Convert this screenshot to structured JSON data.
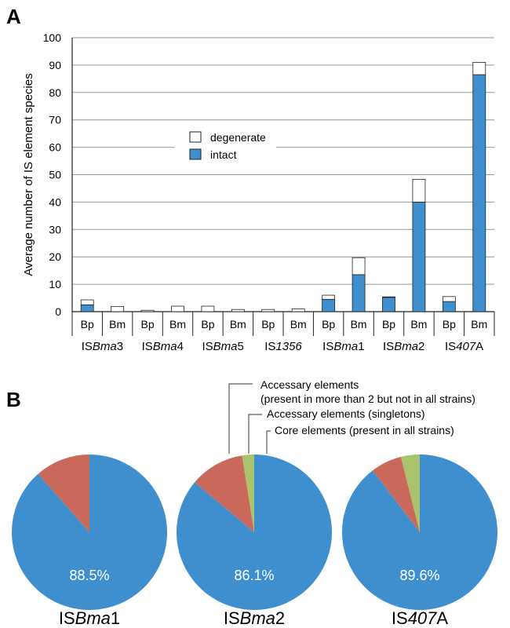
{
  "panels": {
    "a_label": "A",
    "b_label": "B"
  },
  "colors": {
    "intact": "#3f8fcf",
    "degenerate": "#ffffff",
    "accessory_multi": "#c9695c",
    "accessory_singleton": "#a9c46c",
    "core": "#3f8fcf",
    "grid": "#8a9aa8",
    "axis": "#222222"
  },
  "chart_data": [
    {
      "type": "bar",
      "stacked": true,
      "ylabel": "Average number of IS element species",
      "ylim": [
        0,
        100
      ],
      "yticks": [
        0,
        10,
        20,
        30,
        40,
        50,
        60,
        70,
        80,
        90,
        100
      ],
      "grid": true,
      "legend_position": "center-left",
      "groups": [
        {
          "prefix": "IS",
          "italic": "Bma",
          "suffix": "3"
        },
        {
          "prefix": "IS",
          "italic": "Bma",
          "suffix": "4"
        },
        {
          "prefix": "IS",
          "italic": "Bma",
          "suffix": "5"
        },
        {
          "prefix": "IS",
          "italic": "1356",
          "suffix": ""
        },
        {
          "prefix": "IS",
          "italic": "Bma",
          "suffix": "1"
        },
        {
          "prefix": "IS",
          "italic": "Bma",
          "suffix": "2"
        },
        {
          "prefix": "IS",
          "italic": "407",
          "suffix": "A"
        }
      ],
      "categories": [
        "Bp",
        "Bm",
        "Bp",
        "Bm",
        "Bp",
        "Bm",
        "Bp",
        "Bm",
        "Bp",
        "Bm",
        "Bp",
        "Bm",
        "Bp",
        "Bm"
      ],
      "series": [
        {
          "name": "intact",
          "values": [
            2.5,
            0,
            0,
            0,
            0,
            0,
            0,
            0,
            4.5,
            13.5,
            5.2,
            40,
            3.7,
            86.5
          ]
        },
        {
          "name": "degenerate",
          "values": [
            1.8,
            1.9,
            0.5,
            2.0,
            2.0,
            0.8,
            0.8,
            1.0,
            1.5,
            6.2,
            0.2,
            8.3,
            1.8,
            4.5
          ]
        }
      ]
    },
    {
      "type": "pie",
      "title": {
        "prefix": "IS",
        "italic": "Bma",
        "suffix": "1"
      },
      "label": "88.5%",
      "slices": [
        {
          "name": "Core elements (present in all strains)",
          "value": 88.5
        },
        {
          "name": "Accessary elements (present in more than 2 but not in all strains)",
          "value": 11.5
        },
        {
          "name": "Accessary elements (singletons)",
          "value": 0
        }
      ]
    },
    {
      "type": "pie",
      "title": {
        "prefix": "IS",
        "italic": "Bma",
        "suffix": "2"
      },
      "label": "86.1%",
      "slices": [
        {
          "name": "Core elements (present in all strains)",
          "value": 86.1
        },
        {
          "name": "Accessary elements (present in more than 2 but not in all strains)",
          "value": 11.4
        },
        {
          "name": "Accessary elements (singletons)",
          "value": 2.5
        }
      ]
    },
    {
      "type": "pie",
      "title": {
        "prefix": "IS",
        "italic": "407",
        "suffix": "A"
      },
      "label": "89.6%",
      "slices": [
        {
          "name": "Core elements (present in all strains)",
          "value": 89.6
        },
        {
          "name": "Accessary elements (present in more than 2 but not in all strains)",
          "value": 6.5
        },
        {
          "name": "Accessary elements (singletons)",
          "value": 3.9
        }
      ]
    }
  ],
  "pie_annotations": {
    "line1a": "Accessary elements",
    "line1b": "(present in more than 2 but not in all strains)",
    "line2": "Accessary elements (singletons)",
    "line3": "Core elements (present in all strains)"
  }
}
